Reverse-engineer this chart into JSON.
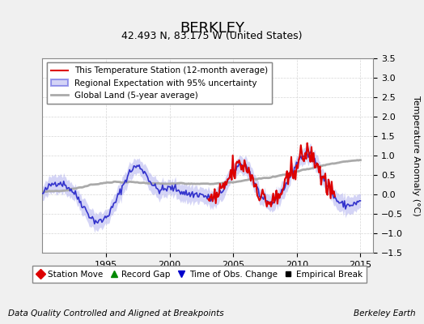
{
  "title": "BERKLEY",
  "subtitle": "42.493 N, 83.175 W (United States)",
  "xlabel_left": "Data Quality Controlled and Aligned at Breakpoints",
  "xlabel_right": "Berkeley Earth",
  "ylabel": "Temperature Anomaly (°C)",
  "xlim": [
    1990,
    2016
  ],
  "ylim": [
    -1.5,
    3.5
  ],
  "yticks": [
    -1.5,
    -1,
    -0.5,
    0,
    0.5,
    1,
    1.5,
    2,
    2.5,
    3,
    3.5
  ],
  "xticks": [
    1995,
    2000,
    2005,
    2010,
    2015
  ],
  "bg_color": "#f0f0f0",
  "plot_bg_color": "#ffffff",
  "legend_entries": [
    {
      "label": "This Temperature Station (12-month average)",
      "color": "#dd0000",
      "lw": 1.5
    },
    {
      "label": "Regional Expectation with 95% uncertainty",
      "color": "#4444dd",
      "lw": 1.5
    },
    {
      "label": "Global Land (5-year average)",
      "color": "#aaaaaa",
      "lw": 2.0
    }
  ],
  "marker_entries": [
    {
      "label": "Station Move",
      "color": "#dd0000",
      "marker": "D"
    },
    {
      "label": "Record Gap",
      "color": "#008800",
      "marker": "^"
    },
    {
      "label": "Time of Obs. Change",
      "color": "#0000cc",
      "marker": "v"
    },
    {
      "label": "Empirical Break",
      "color": "#000000",
      "marker": "s"
    }
  ],
  "seed": 42
}
